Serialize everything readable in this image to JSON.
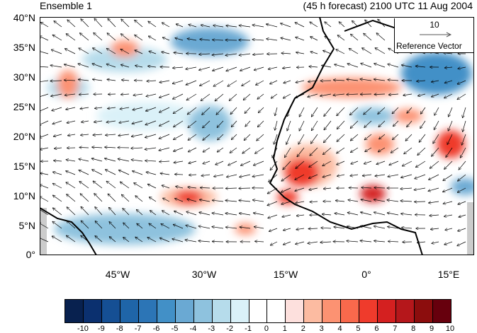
{
  "title_left": "Ensemble 1",
  "title_right": "(45 h forecast) 2100 UTC 11 Aug 2004",
  "lat_ticks": [
    "40°N",
    "35°N",
    "30°N",
    "25°N",
    "20°N",
    "15°N",
    "10°N",
    "5°N",
    "0°"
  ],
  "lon_ticks": [
    "45°W",
    "30°W",
    "15°W",
    "0°",
    "15°E"
  ],
  "reference_vector": {
    "value": "10",
    "label": "Reference Vector"
  },
  "colorbar": {
    "labels": [
      "-10",
      "-9",
      "-8",
      "-7",
      "-6",
      "-5",
      "-4",
      "-3",
      "-2",
      "-1",
      "0",
      "1",
      "2",
      "3",
      "4",
      "5",
      "6",
      "7",
      "8",
      "9",
      "10"
    ],
    "colors": [
      "#08214f",
      "#0b306f",
      "#154f94",
      "#1f65a8",
      "#2c75b6",
      "#4290c7",
      "#6aa9d3",
      "#8ec2de",
      "#b6dceb",
      "#daf1f8",
      "#ffffff",
      "#ffffff",
      "#fde0dd",
      "#fcbba1",
      "#fc9272",
      "#f9694c",
      "#ef3b2c",
      "#d42020",
      "#b5171b",
      "#8c0d0d",
      "#67000d"
    ]
  }
}
